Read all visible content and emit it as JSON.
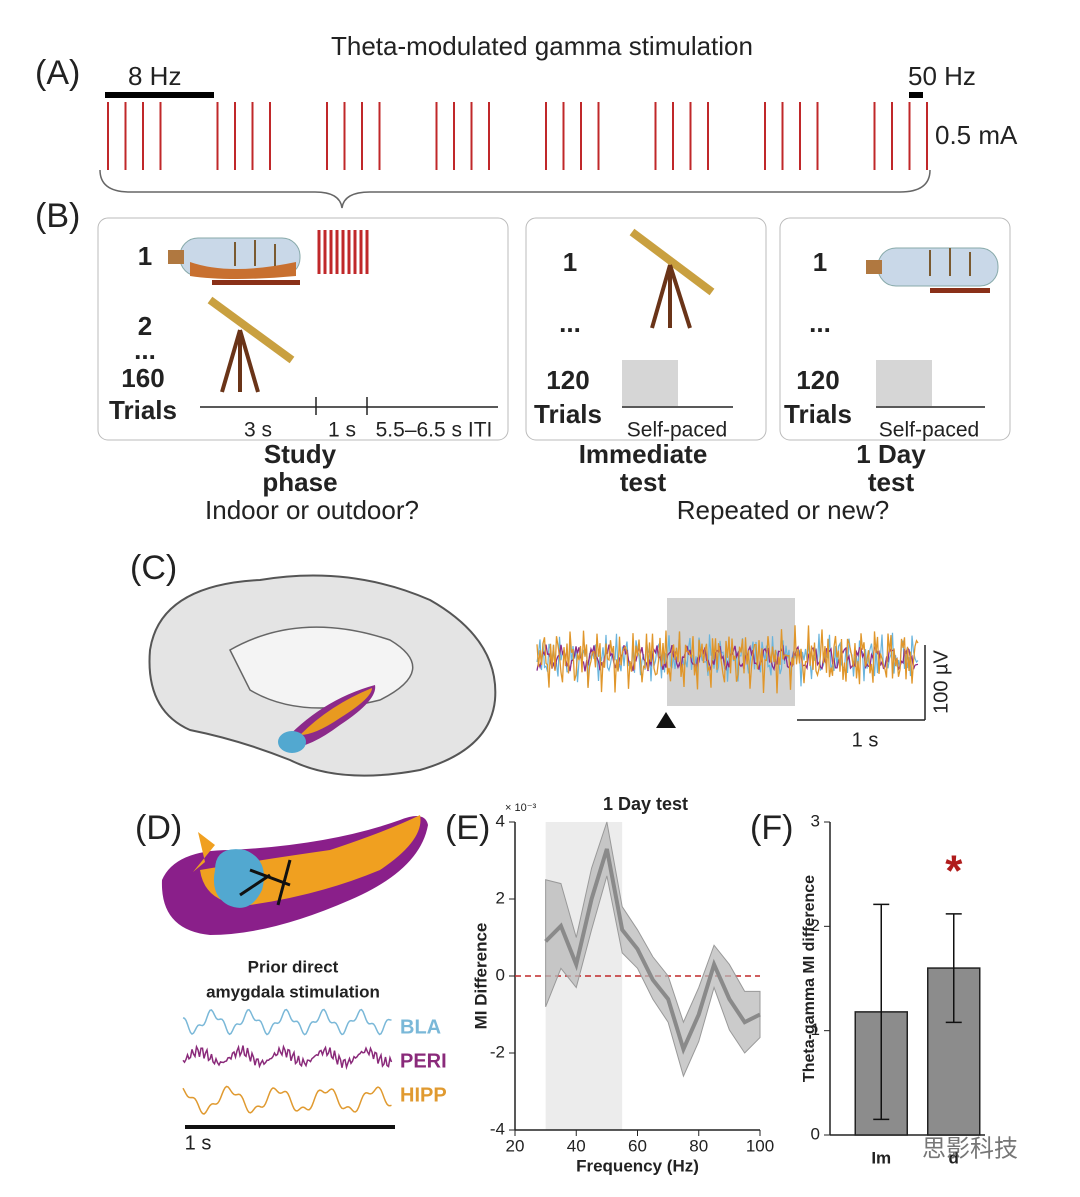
{
  "panels": {
    "a": {
      "label": "(A)",
      "title": "Theta-modulated gamma stimulation",
      "left_scale": "8 Hz",
      "right_scale": "50 Hz",
      "amplitude": "0.5 mA"
    },
    "b": {
      "label": "(B)",
      "study": {
        "row1": "1",
        "row2": "2",
        "dots": "...",
        "count": "160",
        "trials": "Trials",
        "t1": "3 s",
        "t2": "1 s",
        "t3": "5.5–6.5 s ITI",
        "name_line1": "Study",
        "name_line2": "phase",
        "question": "Indoor or outdoor?"
      },
      "immediate": {
        "row1": "1",
        "dots": "...",
        "count": "120",
        "trials": "Trials",
        "timing": "Self-paced",
        "name_line1": "Immediate",
        "name_line2": "test"
      },
      "day": {
        "row1": "1",
        "dots": "...",
        "count": "120",
        "trials": "Trials",
        "timing": "Self-paced",
        "name_line1": "1 Day",
        "name_line2": "test"
      },
      "question": "Repeated or new?"
    },
    "c": {
      "label": "(C)",
      "v_scale": "100 µV",
      "t_scale": "1 s"
    },
    "d": {
      "label": "(D)",
      "caption_line1": "Prior direct",
      "caption_line2": "amygdala stimulation",
      "traces": [
        "BLA",
        "PERI",
        "HIPP"
      ],
      "t_scale": "1 s"
    },
    "e": {
      "label": "(E)"
    },
    "f": {
      "label": "(F)"
    },
    "watermark": "思影科技"
  },
  "chart_data": [
    {
      "type": "line",
      "title": "1 Day test",
      "y_exponent": "× 10⁻³",
      "xlabel": "Frequency (Hz)",
      "ylabel": "MI Difference",
      "x": [
        30,
        35,
        40,
        45,
        50,
        55,
        60,
        65,
        70,
        75,
        80,
        85,
        90,
        95,
        100
      ],
      "series": [
        {
          "color": "#8a8a8a",
          "band_color": "#b9b9b9",
          "values": [
            0.9,
            1.3,
            0.3,
            2.0,
            3.3,
            1.2,
            0.7,
            -0.1,
            -0.6,
            -1.9,
            -1.0,
            0.3,
            -0.6,
            -1.2,
            -1.0
          ],
          "upper": [
            2.5,
            2.4,
            1.0,
            2.8,
            4.0,
            1.8,
            1.2,
            0.5,
            0.0,
            -1.2,
            -0.3,
            0.8,
            0.3,
            -0.4,
            -0.4
          ],
          "lower": [
            -0.8,
            0.2,
            -0.3,
            1.2,
            2.6,
            0.6,
            0.2,
            -0.6,
            -1.2,
            -2.6,
            -1.7,
            -0.3,
            -1.4,
            -2.0,
            -1.6
          ]
        }
      ],
      "shade": [
        30,
        55
      ],
      "reference_line": 0,
      "xlim": [
        20,
        100
      ],
      "xticks": [
        20,
        40,
        60,
        80,
        100
      ],
      "ylim": [
        -4,
        4
      ],
      "yticks": [
        -4,
        -2,
        0,
        2,
        4
      ]
    },
    {
      "type": "bar",
      "ylabel": "Theta-gamma MI difference",
      "categories": [
        "Im",
        "d"
      ],
      "values": [
        1.18,
        1.6
      ],
      "errors": [
        1.03,
        0.52
      ],
      "color": "#8c8c8c",
      "annotation": "*",
      "annotation_color": "#b01c1c",
      "ylim": [
        0,
        3
      ],
      "yticks": [
        0,
        1,
        2,
        3
      ]
    }
  ]
}
